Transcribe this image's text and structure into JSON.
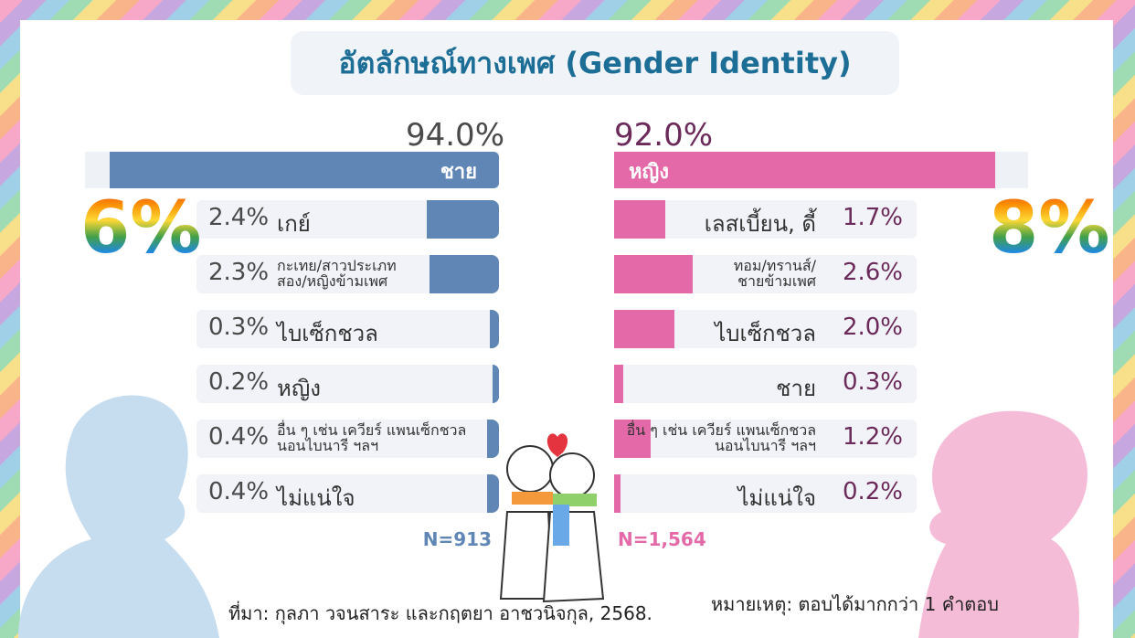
{
  "title": "อัตลักษณ์ทางเพศ (Gender Identity)",
  "chart_data": [
    {
      "type": "bar",
      "color": "#5f86b5",
      "label_color": "#4a4a4a",
      "main_category": "ชาย",
      "main_value": 94.0,
      "main_value_label": "94.0%",
      "main_xlim": [
        0,
        100
      ],
      "categories": [
        "เกย์",
        "กะเทย/สาวประเภท\nสอง/หญิงข้ามเพศ",
        "ไบเซ็กชวล",
        "หญิง",
        "อื่น ๆ เช่น เควียร์ แพนเซ็กชวล\nนอนไบนารี ฯลฯ",
        "ไม่แน่ใจ"
      ],
      "values": [
        2.4,
        2.3,
        0.3,
        0.2,
        0.4,
        0.4
      ],
      "value_labels": [
        "2.4%",
        "2.3%",
        "0.3%",
        "0.2%",
        "0.4%",
        "0.4%"
      ],
      "xlim": [
        0,
        10
      ],
      "n_label": "N=913",
      "minority_total": "6%"
    },
    {
      "type": "bar",
      "color": "#e469a8",
      "label_color": "#6b2a5a",
      "main_category": "หญิง",
      "main_value": 92.0,
      "main_value_label": "92.0%",
      "main_xlim": [
        0,
        100
      ],
      "categories": [
        "เลสเบี้ยน, ดี้",
        "ทอม/ทรานส์/\nชายข้ามเพศ",
        "ไบเซ็กชวล",
        "ชาย",
        "อื่น ๆ เช่น เควียร์ แพนเซ็กชวล\nนอนไบนารี ฯลฯ",
        "ไม่แน่ใจ"
      ],
      "values": [
        1.7,
        2.6,
        2.0,
        0.3,
        1.2,
        0.2
      ],
      "value_labels": [
        "1.7%",
        "2.6%",
        "2.0%",
        "0.3%",
        "1.2%",
        "0.2%"
      ],
      "xlim": [
        0,
        10
      ],
      "n_label": "N=1,564",
      "minority_total": "8%"
    }
  ],
  "note": "หมายเหตุ: ตอบได้มากกว่า 1 คำตอบ",
  "source": "ที่มา: กุลภา วจนสาระ และกฤตยา อาชวนิจกุล, 2568."
}
